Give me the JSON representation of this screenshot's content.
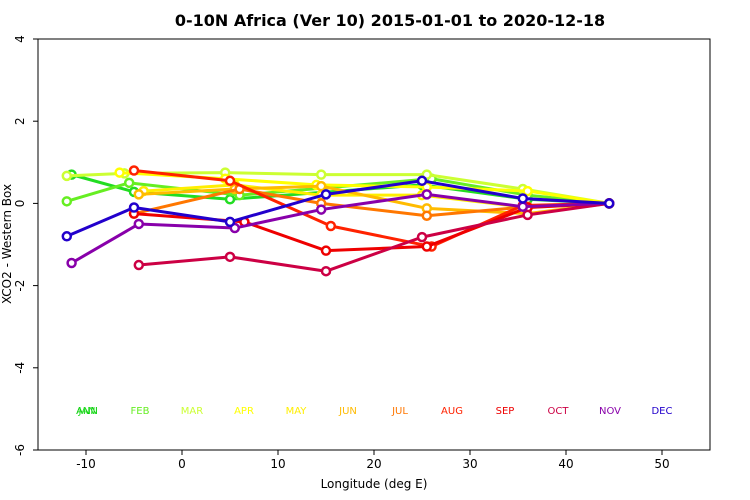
{
  "chart_data": {
    "type": "line",
    "title": "0-10N Africa (Ver 10)   2015-01-01 to 2020-12-18",
    "xlabel": "Longitude (deg E)",
    "ylabel": "XCO2 - Western Box",
    "xlim": [
      -15,
      55
    ],
    "ylim": [
      -6,
      4
    ],
    "xticks": [
      -10,
      0,
      10,
      20,
      30,
      40,
      50
    ],
    "yticks": [
      -6,
      -4,
      -2,
      0,
      2,
      4
    ],
    "month_legend": [
      {
        "label": "ANN",
        "color": "#00cc00"
      },
      {
        "label": "JAN",
        "color": "#22dd22"
      },
      {
        "label": "FEB",
        "color": "#66ee22"
      },
      {
        "label": "MAR",
        "color": "#ccff33"
      },
      {
        "label": "APR",
        "color": "#ffff00"
      },
      {
        "label": "MAY",
        "color": "#ffee00"
      },
      {
        "label": "JUN",
        "color": "#ffbb00"
      },
      {
        "label": "JUL",
        "color": "#ff7700"
      },
      {
        "label": "AUG",
        "color": "#ff2200"
      },
      {
        "label": "SEP",
        "color": "#ee0000"
      },
      {
        "label": "OCT",
        "color": "#cc0044"
      },
      {
        "label": "NOV",
        "color": "#8800aa"
      },
      {
        "label": "DEC",
        "color": "#2200cc"
      }
    ],
    "series": [
      {
        "name": "JAN",
        "color": "#22dd22",
        "x": [
          -11.5,
          -5,
          5,
          25,
          36,
          44.5
        ],
        "y": [
          0.7,
          0.28,
          0.1,
          0.45,
          0.1,
          0.0
        ]
      },
      {
        "name": "FEB",
        "color": "#66ee22",
        "x": [
          -12,
          -5.5,
          6,
          26,
          36,
          44.5
        ],
        "y": [
          0.05,
          0.5,
          0.2,
          0.6,
          0.2,
          0.0
        ]
      },
      {
        "name": "MAR",
        "color": "#ccff33",
        "x": [
          -12,
          -6,
          4.5,
          14.5,
          25.5,
          35.5,
          44.5
        ],
        "y": [
          0.67,
          0.73,
          0.75,
          0.7,
          0.7,
          0.35,
          0.0
        ]
      },
      {
        "name": "APR",
        "color": "#ffff00",
        "x": [
          -6.5,
          4.5,
          14,
          25.5,
          36,
          44.5
        ],
        "y": [
          0.75,
          0.6,
          0.45,
          0.4,
          0.3,
          0.0
        ]
      },
      {
        "name": "MAY",
        "color": "#ffee00",
        "x": [
          -4,
          5.5,
          14.5,
          25,
          36,
          44.5
        ],
        "y": [
          0.3,
          0.45,
          0.2,
          0.2,
          -0.1,
          0.0
        ]
      },
      {
        "name": "JUN",
        "color": "#ffbb00",
        "x": [
          -4.5,
          5.5,
          14.5,
          25.5,
          36,
          44.5
        ],
        "y": [
          0.22,
          0.35,
          0.42,
          -0.12,
          -0.25,
          0.0
        ]
      },
      {
        "name": "JUL",
        "color": "#ff7700",
        "x": [
          -5,
          6,
          14.5,
          25.5,
          36,
          44.5
        ],
        "y": [
          -0.25,
          0.35,
          0.0,
          -0.3,
          -0.08,
          0.0
        ]
      },
      {
        "name": "AUG",
        "color": "#ff2200",
        "x": [
          -5,
          5,
          15.5,
          26,
          35.5,
          44.5
        ],
        "y": [
          0.8,
          0.55,
          -0.55,
          -1.05,
          -0.05,
          0.0
        ]
      },
      {
        "name": "SEP",
        "color": "#ee0000",
        "x": [
          -5,
          6.5,
          15,
          25.5,
          36,
          44.5
        ],
        "y": [
          -0.25,
          -0.45,
          -1.15,
          -1.05,
          -0.1,
          0.0
        ]
      },
      {
        "name": "OCT",
        "color": "#cc0044",
        "x": [
          -4.5,
          5,
          15,
          25,
          36,
          44.5
        ],
        "y": [
          -1.5,
          -1.3,
          -1.65,
          -0.82,
          -0.28,
          0.0
        ]
      },
      {
        "name": "NOV",
        "color": "#8800aa",
        "x": [
          -11.5,
          -4.5,
          5.5,
          14.5,
          25.5,
          35.5,
          44.5
        ],
        "y": [
          -1.45,
          -0.5,
          -0.6,
          -0.15,
          0.22,
          -0.08,
          0.0
        ]
      },
      {
        "name": "DEC",
        "color": "#2200cc",
        "x": [
          -12,
          -5,
          5,
          15,
          25,
          35.5,
          44.5
        ],
        "y": [
          -0.8,
          -0.1,
          -0.45,
          0.22,
          0.55,
          0.12,
          0.0
        ]
      }
    ]
  }
}
